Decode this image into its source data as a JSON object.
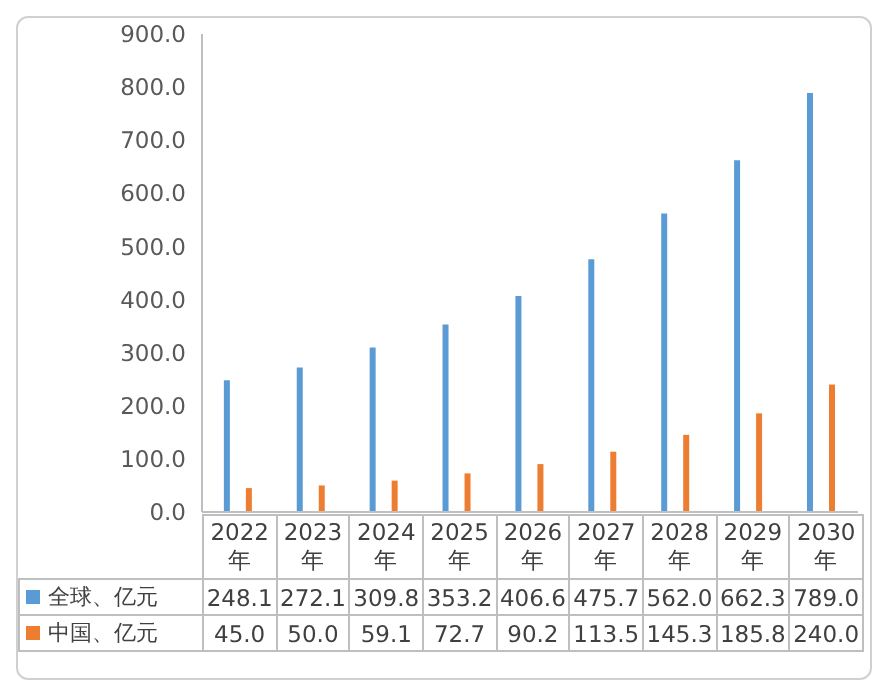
{
  "chart_data": {
    "type": "bar",
    "categories": [
      "2022年",
      "2023年",
      "2024年",
      "2025年",
      "2026年",
      "2027年",
      "2028年",
      "2029年",
      "2030年"
    ],
    "series": [
      {
        "name": "全球、亿元",
        "color": "#5b9bd5",
        "values": [
          248.1,
          272.1,
          309.8,
          353.2,
          406.6,
          475.7,
          562.0,
          662.3,
          789.0
        ],
        "value_labels": [
          "248.1",
          "272.1",
          "309.8",
          "353.2",
          "406.6",
          "475.7",
          "562.0",
          "662.3",
          "789.0"
        ]
      },
      {
        "name": "中国、亿元",
        "color": "#ed7d31",
        "values": [
          45.0,
          50.0,
          59.1,
          72.7,
          90.2,
          113.5,
          145.3,
          185.8,
          240.0
        ],
        "value_labels": [
          "45.0",
          "50.0",
          "59.1",
          "72.7",
          "90.2",
          "113.5",
          "145.3",
          "185.8",
          "240.0"
        ]
      }
    ],
    "ylim": [
      0,
      900
    ],
    "yticks": [
      {
        "value": 0,
        "label": "0.0"
      },
      {
        "value": 100,
        "label": "100.0"
      },
      {
        "value": 200,
        "label": "200.0"
      },
      {
        "value": 300,
        "label": "300.0"
      },
      {
        "value": 400,
        "label": "400.0"
      },
      {
        "value": 500,
        "label": "500.0"
      },
      {
        "value": 600,
        "label": "600.0"
      },
      {
        "value": 700,
        "label": "700.0"
      },
      {
        "value": 800,
        "label": "800.0"
      },
      {
        "value": 900,
        "label": "900.0"
      }
    ],
    "grid": false,
    "legend": "bottom"
  }
}
